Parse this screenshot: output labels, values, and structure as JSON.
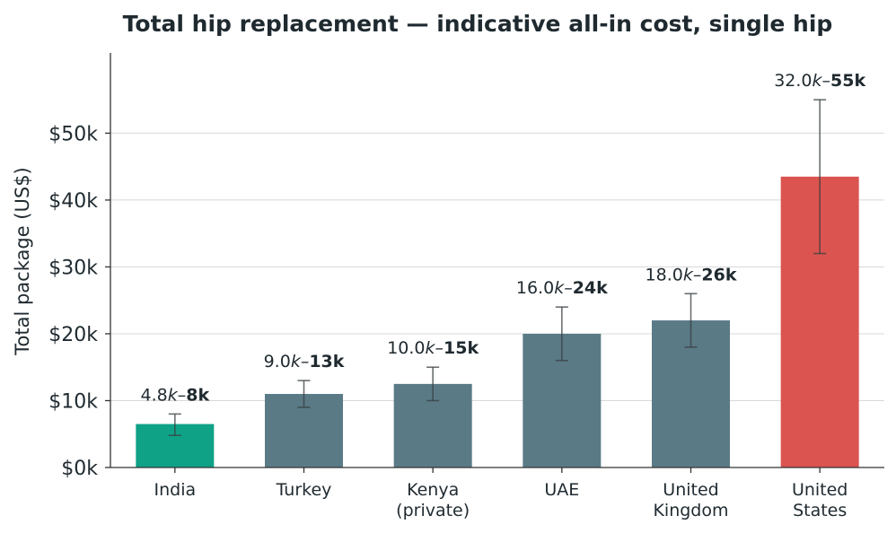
{
  "chart_data": {
    "type": "bar",
    "title": "Total hip replacement — indicative all-in cost, single hip",
    "xlabel": "",
    "ylabel": "Total package (US$)",
    "ylim": [
      0,
      62000
    ],
    "yticks": [
      0,
      10000,
      20000,
      30000,
      40000,
      50000
    ],
    "ytick_labels": [
      "$0k",
      "$10k",
      "$20k",
      "$30k",
      "$40k",
      "$50k"
    ],
    "grid": "horizontal",
    "categories": [
      "India",
      "Turkey",
      "Kenya\n(private)",
      "UAE",
      "United\nKingdom",
      "United\nStates"
    ],
    "values": [
      6500,
      11000,
      12500,
      20000,
      22000,
      43500
    ],
    "range_low": [
      4800,
      9000,
      10000,
      16000,
      18000,
      32000
    ],
    "range_high": [
      8000,
      13000,
      15000,
      24000,
      26000,
      55000
    ],
    "data_labels": [
      {
        "low": "4.8",
        "high": "8k"
      },
      {
        "low": "9.0",
        "high": "13k"
      },
      {
        "low": "10.0",
        "high": "15k"
      },
      {
        "low": "16.0",
        "high": "24k"
      },
      {
        "low": "18.0",
        "high": "26k"
      },
      {
        "low": "32.0",
        "high": "55k"
      }
    ],
    "colors": [
      "#0fa287",
      "#5a7a86",
      "#5a7a86",
      "#5a7a86",
      "#5a7a86",
      "#db5450"
    ]
  }
}
